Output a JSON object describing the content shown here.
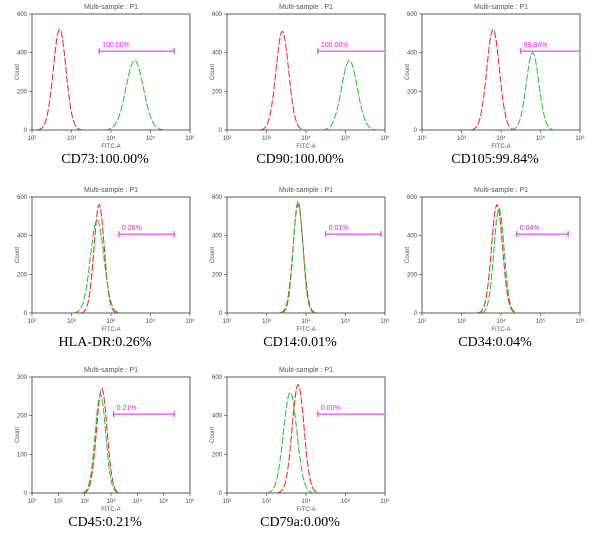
{
  "colors": {
    "isotype": "#e8232a",
    "marker": "#22c12a",
    "gate": "#e020e0",
    "axis": "#333333"
  },
  "chart_data": [
    {
      "type": "histogram",
      "title": "Multi-sample : P1",
      "xlabel": "FITC-A",
      "ylabel": "Count",
      "xscale": "log",
      "xlim": [
        100,
        1000000
      ],
      "ylim": [
        0,
        600
      ],
      "yticks": [
        0,
        200,
        400,
        600
      ],
      "xticks": [
        "10²",
        "10³",
        "10⁴",
        "10⁵",
        "10⁶"
      ],
      "series": [
        {
          "color": "red",
          "peak_log10": 2.7,
          "width": 0.16,
          "height": 520
        },
        {
          "color": "green",
          "peak_log10": 4.6,
          "width": 0.22,
          "height": 360
        }
      ],
      "gate": {
        "label": "100.00%",
        "range_log10": [
          3.7,
          5.6
        ]
      },
      "caption": "CD73:100.00%"
    },
    {
      "type": "histogram",
      "title": "Multi-sample : P1",
      "xlabel": "FITC-A",
      "ylabel": "Count",
      "xscale": "log",
      "xlim": [
        100,
        1000000
      ],
      "ylim": [
        0,
        600
      ],
      "yticks": [
        0,
        200,
        400,
        600
      ],
      "xticks": [
        "10²",
        "10³",
        "10⁴",
        "10⁵",
        "10⁶"
      ],
      "series": [
        {
          "color": "red",
          "peak_log10": 3.4,
          "width": 0.16,
          "height": 510
        },
        {
          "color": "green",
          "peak_log10": 5.1,
          "width": 0.2,
          "height": 360
        }
      ],
      "gate": {
        "label": "100.00%",
        "range_log10": [
          4.3,
          6.0
        ]
      },
      "caption": "CD90:100.00%"
    },
    {
      "type": "histogram",
      "title": "Multi-sample : P1",
      "xlabel": "FITC-A",
      "ylabel": "Count",
      "xscale": "log",
      "xlim": [
        100,
        1000000
      ],
      "ylim": [
        0,
        600
      ],
      "yticks": [
        0,
        200,
        400,
        600
      ],
      "xticks": [
        "10²",
        "10³",
        "10⁴",
        "10⁵",
        "10⁶"
      ],
      "series": [
        {
          "color": "red",
          "peak_log10": 3.8,
          "width": 0.16,
          "height": 520
        },
        {
          "color": "green",
          "peak_log10": 4.8,
          "width": 0.16,
          "height": 400
        }
      ],
      "gate": {
        "label": "99.84%",
        "range_log10": [
          4.5,
          6.0
        ]
      },
      "caption": "CD105:99.84%"
    },
    {
      "type": "histogram",
      "title": "Multi-sample : P1",
      "xlabel": "FITC-A",
      "ylabel": "Count",
      "xscale": "log",
      "xlim": [
        100,
        1000000
      ],
      "ylim": [
        0,
        600
      ],
      "yticks": [
        0,
        200,
        400,
        600
      ],
      "xticks": [
        "10²",
        "10³",
        "10⁴",
        "10⁵",
        "10⁶"
      ],
      "series": [
        {
          "color": "red",
          "peak_log10": 3.7,
          "width": 0.13,
          "height": 560
        },
        {
          "color": "green",
          "peak_log10": 3.65,
          "width": 0.17,
          "height": 480
        }
      ],
      "gate": {
        "label": "0.26%",
        "range_log10": [
          4.2,
          5.6
        ]
      },
      "caption": "HLA-DR:0.26%"
    },
    {
      "type": "histogram",
      "title": "Multi-sample : P1",
      "xlabel": "FITC-A",
      "ylabel": "Count",
      "xscale": "log",
      "xlim": [
        100,
        1000000
      ],
      "ylim": [
        0,
        600
      ],
      "yticks": [
        0,
        200,
        400,
        600
      ],
      "xticks": [
        "10²",
        "10³",
        "10⁴",
        "10⁵",
        "10⁶"
      ],
      "series": [
        {
          "color": "red",
          "peak_log10": 3.8,
          "width": 0.13,
          "height": 560
        },
        {
          "color": "green",
          "peak_log10": 3.8,
          "width": 0.12,
          "height": 580
        }
      ],
      "gate": {
        "label": "0.01%",
        "range_log10": [
          4.5,
          5.9
        ]
      },
      "caption": "CD14:0.01%"
    },
    {
      "type": "histogram",
      "title": "Multi-sample : P1",
      "xlabel": "FITC-A",
      "ylabel": "Count",
      "xscale": "log",
      "xlim": [
        100,
        1000000
      ],
      "ylim": [
        0,
        600
      ],
      "yticks": [
        0,
        200,
        400,
        600
      ],
      "xticks": [
        "10²",
        "10³",
        "10⁴",
        "10⁵",
        "10⁶"
      ],
      "series": [
        {
          "color": "red",
          "peak_log10": 3.9,
          "width": 0.14,
          "height": 560
        },
        {
          "color": "green",
          "peak_log10": 3.95,
          "width": 0.13,
          "height": 540
        }
      ],
      "gate": {
        "label": "0.04%",
        "range_log10": [
          4.4,
          5.7
        ]
      },
      "caption": "CD34:0.04%"
    },
    {
      "type": "histogram",
      "title": "Multi-sample : P1",
      "xlabel": "FITC-A",
      "ylabel": "Count",
      "xscale": "log",
      "xlim": [
        1,
        1000000
      ],
      "ylim": [
        0,
        300
      ],
      "yticks": [
        0,
        100,
        200,
        300
      ],
      "xticks": [
        "10⁰",
        "10¹",
        "10²",
        "10³",
        "10⁴",
        "10⁵",
        "10⁶"
      ],
      "series": [
        {
          "color": "red",
          "peak_log10": 2.65,
          "width": 0.2,
          "height": 270
        },
        {
          "color": "green",
          "peak_log10": 2.6,
          "width": 0.2,
          "height": 255
        }
      ],
      "gate": {
        "label": "0.21%",
        "range_log10": [
          3.1,
          5.4
        ]
      },
      "caption": "CD45:0.21%"
    },
    {
      "type": "histogram",
      "title": "Multi-sample : P1",
      "xlabel": "FITC-A",
      "ylabel": "Count",
      "xscale": "log",
      "xlim": [
        100,
        1000000
      ],
      "ylim": [
        0,
        600
      ],
      "yticks": [
        0,
        200,
        400,
        600
      ],
      "xticks": [
        "10²",
        "10³",
        "10⁴",
        "10⁵",
        "10⁶"
      ],
      "series": [
        {
          "color": "red",
          "peak_log10": 3.8,
          "width": 0.15,
          "height": 560
        },
        {
          "color": "green",
          "peak_log10": 3.6,
          "width": 0.17,
          "height": 520
        }
      ],
      "gate": {
        "label": "0.00%",
        "range_log10": [
          4.3,
          6.0
        ]
      },
      "caption": "CD79a:0.00%"
    }
  ]
}
